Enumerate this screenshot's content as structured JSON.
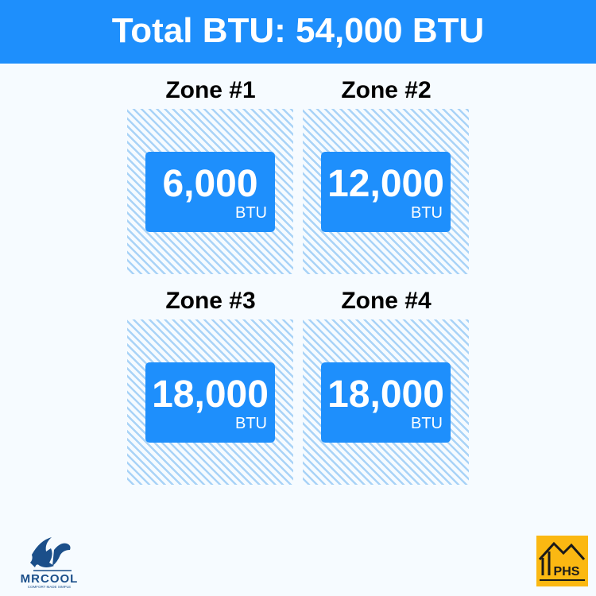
{
  "header": {
    "title": "Total BTU: 54,000 BTU"
  },
  "zones": [
    {
      "title": "Zone #1",
      "value": "6,000",
      "unit": "BTU"
    },
    {
      "title": "Zone #2",
      "value": "12,000",
      "unit": "BTU"
    },
    {
      "title": "Zone #3",
      "value": "18,000",
      "unit": "BTU"
    },
    {
      "title": "Zone #4",
      "value": "18,000",
      "unit": "BTU"
    }
  ],
  "logos": {
    "mrcool": "MRCOOL",
    "mrcool_tagline": "COMFORT MADE SIMPLE",
    "phs": "PHS"
  },
  "colors": {
    "accent": "#1e8ffc",
    "hatch": "#a9d3f7",
    "phs": "#fbb812"
  }
}
